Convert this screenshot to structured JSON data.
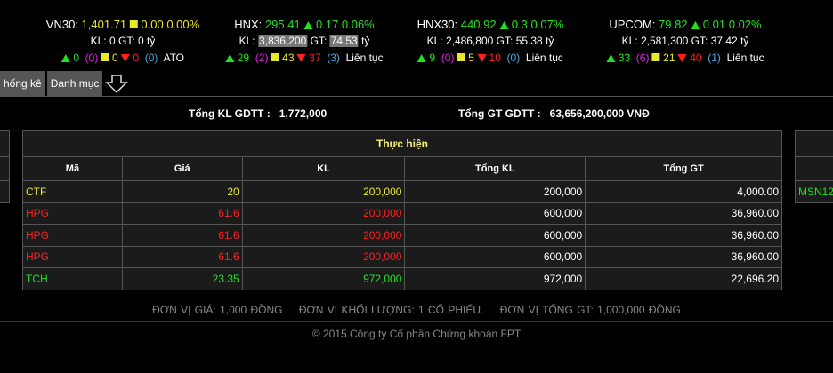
{
  "indices": [
    {
      "name": "VN30:",
      "value": "1,401.71",
      "dir": "same",
      "change": "0.00",
      "pct": "0.00%",
      "kl": "0",
      "gt": "0",
      "up": "0",
      "ceil": "(0)",
      "same": "0",
      "down": "0",
      "floor": "(0)",
      "status": "ATO",
      "color": "#e8e82a"
    },
    {
      "name": "HNX:",
      "value": "295.41",
      "dir": "up",
      "change": "0.17",
      "pct": "0.06%",
      "kl": "3,836,200",
      "gt": "74.53",
      "up": "29",
      "ceil": "(2)",
      "same": "43",
      "down": "37",
      "floor": "(3)",
      "status": "Liên tục",
      "color": "#22e022"
    },
    {
      "name": "HNX30:",
      "value": "440.92",
      "dir": "up",
      "change": "0.3",
      "pct": "0.07%",
      "kl": "2,486,800",
      "gt": "55.38",
      "up": "9",
      "ceil": "(0)",
      "same": "5",
      "down": "10",
      "floor": "(0)",
      "status": "Liên tục",
      "color": "#22e022"
    },
    {
      "name": "UPCOM:",
      "value": "79.82",
      "dir": "up",
      "change": "0.01",
      "pct": "0.02%",
      "kl": "2,581,300",
      "gt": "37.42",
      "up": "33",
      "ceil": "(6)",
      "same": "21",
      "down": "40",
      "floor": "(1)",
      "status": "Liên tục",
      "color": "#22e022"
    }
  ],
  "labels": {
    "kl": "KL:",
    "gt": "GT:",
    "ty": "tỷ"
  },
  "tabs": [
    "hống kê",
    "Danh mục"
  ],
  "summary": {
    "kl_label": "Tổng KL GDTT :",
    "kl_value": "1,772,000",
    "gt_label": "Tổng GT GDTT :",
    "gt_value": "63,656,200,000 VNĐ"
  },
  "table": {
    "group": "Thực hiện",
    "headers": [
      "Mã",
      "Giá",
      "KL",
      "Tổng KL",
      "Tổng GT"
    ],
    "rows": [
      {
        "ma": "CTF",
        "gia": "20",
        "kl": "200,000",
        "tkl": "200,000",
        "tgt": "4,000.00",
        "color": "#e8e82a"
      },
      {
        "ma": "HPG",
        "gia": "61.6",
        "kl": "200,000",
        "tkl": "600,000",
        "tgt": "36,960.00",
        "color": "#ff2020"
      },
      {
        "ma": "HPG",
        "gia": "61.6",
        "kl": "200,000",
        "tkl": "600,000",
        "tgt": "36,960.00",
        "color": "#ff2020"
      },
      {
        "ma": "HPG",
        "gia": "61.6",
        "kl": "200,000",
        "tkl": "600,000",
        "tgt": "36,960.00",
        "color": "#ff2020"
      },
      {
        "ma": "TCH",
        "gia": "23.35",
        "kl": "972,000",
        "tkl": "972,000",
        "tgt": "22,696.20",
        "color": "#22e022"
      }
    ]
  },
  "right_table": {
    "first": "MSN12"
  },
  "footer": {
    "unit_price": "ĐƠN VỊ GIÁ: 1,000 ĐỒNG",
    "unit_volume": "ĐƠN VỊ KHỐI LƯỢNG: 1 CỔ PHIẾU.",
    "unit_value": "ĐƠN VỊ TỔNG GT: 1,000,000 ĐỒNG",
    "copyright": "© 2015 Công ty Cổ phần Chứng khoán FPT"
  }
}
